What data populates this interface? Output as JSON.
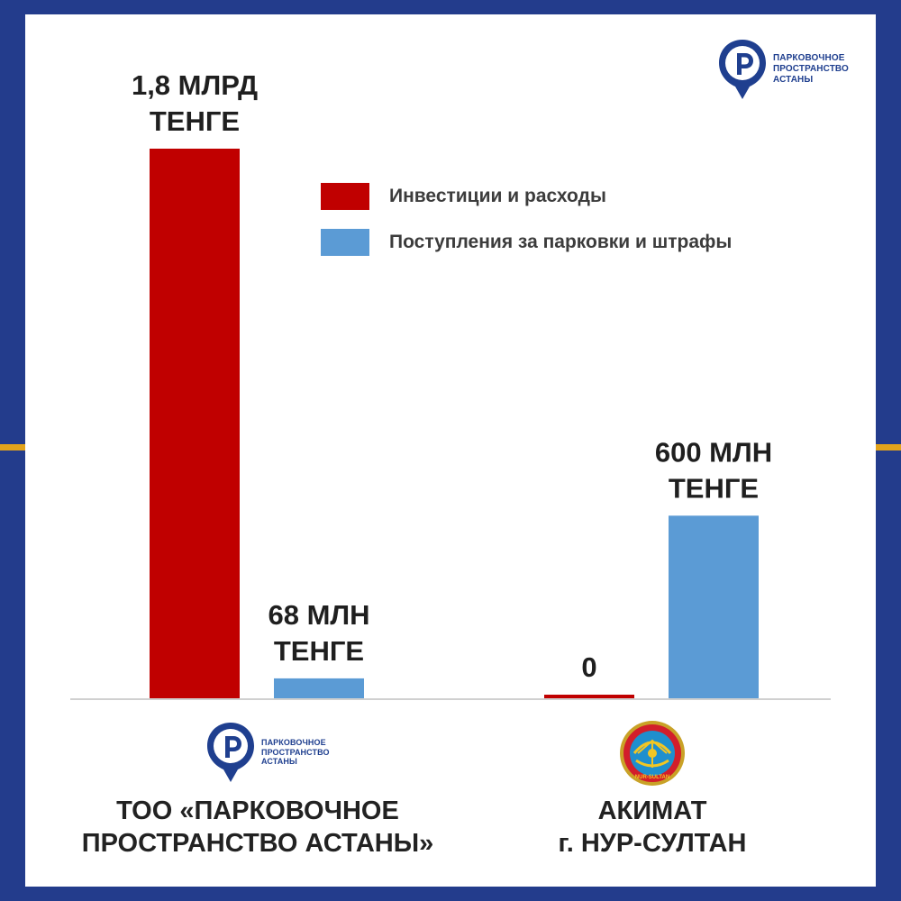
{
  "brand": {
    "logo_lines": [
      "ПАРКОВОЧНОЕ",
      "ПРОСТРАНСТВО",
      "АСТАНЫ"
    ],
    "primary_color": "#233c8c",
    "accent_color": "#e2a31b",
    "icon": "parking-pin-icon"
  },
  "groups": [
    {
      "label_lines": [
        "ТОО «ПАРКОВОЧНОЕ",
        "ПРОСТРАНСТВО АСТАНЫ»"
      ],
      "emblem": "parking-pin-icon"
    },
    {
      "label_lines": [
        "АКИМАТ",
        "г. НУР-СУЛТАН"
      ],
      "emblem": "akimat-emblem-icon",
      "emblem_text": "NUR-SULTAN"
    }
  ],
  "chart_data": {
    "type": "bar",
    "categories": [
      "ТОО «ПАРКОВОЧНОЕ ПРОСТРАНСТВО АСТАНЫ»",
      "АКИМАТ г. НУР-СУЛТАН"
    ],
    "series": [
      {
        "name": "Инвестиции и расходы",
        "color": "#c00000",
        "values": [
          1800,
          0
        ],
        "labels": [
          [
            "1,8 МЛРД",
            "ТЕНГЕ"
          ],
          [
            "0"
          ]
        ]
      },
      {
        "name": "Поступления за парковки и штрафы",
        "color": "#5b9bd5",
        "values": [
          68,
          600
        ],
        "labels": [
          [
            "68 МЛН",
            "ТЕНГЕ"
          ],
          [
            "600 МЛН",
            "ТЕНГЕ"
          ]
        ]
      }
    ],
    "ylim": [
      0,
      1800
    ],
    "grid": false,
    "legend_position": "top-right"
  }
}
